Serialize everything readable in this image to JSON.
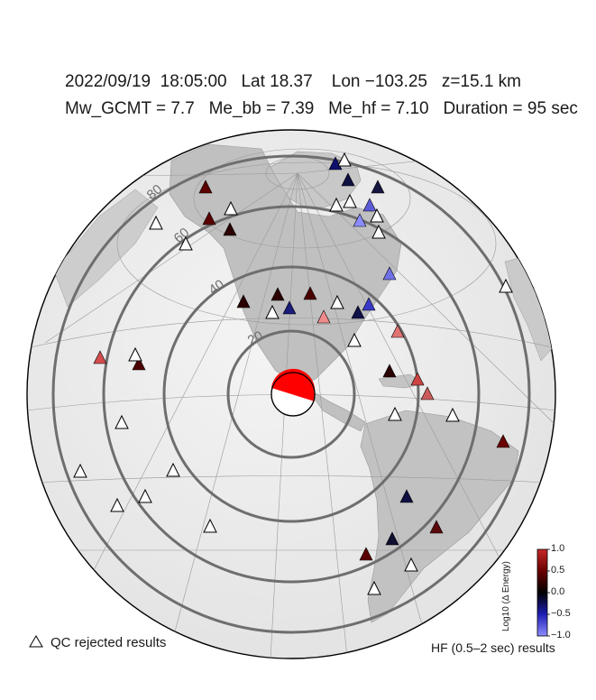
{
  "header": {
    "line1": "2022/09/19  18:05:00   Lat 18.37    Lon −103.25   z=15.1 km",
    "line2": "Mw_GCMT = 7.7   Me_bb = 7.39   Me_hf = 7.10   Duration = 95 sec"
  },
  "map": {
    "distance_ring_labels": [
      "20",
      "40",
      "60",
      "80"
    ],
    "ring_color": "#6e6e6e",
    "beachball": {
      "fill": "#ff0000",
      "background": "#ffffff"
    }
  },
  "legend": {
    "qc_label": "QC rejected results",
    "hf_label": "HF (0.5–2 sec) results"
  },
  "colorbar": {
    "title": "Log10 (Δ Energy)",
    "ticks": [
      "1.0",
      "0.5",
      "0.0",
      "−0.5",
      "−1.0"
    ],
    "colors": [
      "#c62828",
      "#2b0000",
      "#000040",
      "#1e1eb4",
      "#8c8cff"
    ]
  },
  "stations": [
    {
      "kind": "value",
      "color": "#5a0000"
    },
    {
      "kind": "value",
      "color": "#5a0000"
    },
    {
      "kind": "value",
      "color": "#2b0000"
    },
    {
      "kind": "value",
      "color": "#0f0f6e"
    },
    {
      "kind": "value",
      "color": "#0f0f40"
    },
    {
      "kind": "value",
      "color": "#8c8cff"
    },
    {
      "kind": "value",
      "color": "#5c5cd9"
    },
    {
      "kind": "value",
      "color": "#151540"
    },
    {
      "kind": "value",
      "color": "#4b0000"
    },
    {
      "kind": "value",
      "color": "#2b0000"
    },
    {
      "kind": "value",
      "color": "#1b1b7a"
    },
    {
      "kind": "value",
      "color": "#2b0000"
    },
    {
      "kind": "value",
      "color": "#3a3ac8"
    },
    {
      "kind": "value",
      "color": "#ef8a8a"
    },
    {
      "kind": "value",
      "color": "#10104a"
    },
    {
      "kind": "value",
      "color": "#7070e8"
    },
    {
      "kind": "value",
      "color": "#e27373"
    },
    {
      "kind": "value",
      "color": "#d44d4d"
    },
    {
      "kind": "value",
      "color": "#4b0000"
    },
    {
      "kind": "value",
      "color": "#cc4444"
    },
    {
      "kind": "value",
      "color": "#cc5a5a"
    },
    {
      "kind": "value",
      "color": "#6a0000"
    },
    {
      "kind": "value",
      "color": "#2b0000"
    },
    {
      "kind": "value",
      "color": "#0f0f40"
    },
    {
      "kind": "value",
      "color": "#5a0a0a"
    },
    {
      "kind": "value",
      "color": "#5a0000"
    },
    {
      "kind": "value",
      "color": "#0f0f30"
    },
    {
      "kind": "qc"
    },
    {
      "kind": "qc"
    },
    {
      "kind": "qc"
    },
    {
      "kind": "qc"
    },
    {
      "kind": "qc"
    },
    {
      "kind": "qc"
    },
    {
      "kind": "qc"
    },
    {
      "kind": "qc"
    },
    {
      "kind": "qc"
    },
    {
      "kind": "qc"
    },
    {
      "kind": "qc"
    },
    {
      "kind": "qc"
    },
    {
      "kind": "qc"
    },
    {
      "kind": "qc"
    },
    {
      "kind": "qc"
    },
    {
      "kind": "qc"
    },
    {
      "kind": "qc"
    },
    {
      "kind": "qc"
    },
    {
      "kind": "qc"
    },
    {
      "kind": "qc"
    },
    {
      "kind": "qc"
    },
    {
      "kind": "qc"
    },
    {
      "kind": "qc"
    },
    {
      "kind": "qc"
    },
    {
      "kind": "qc"
    },
    {
      "kind": "qc"
    }
  ]
}
